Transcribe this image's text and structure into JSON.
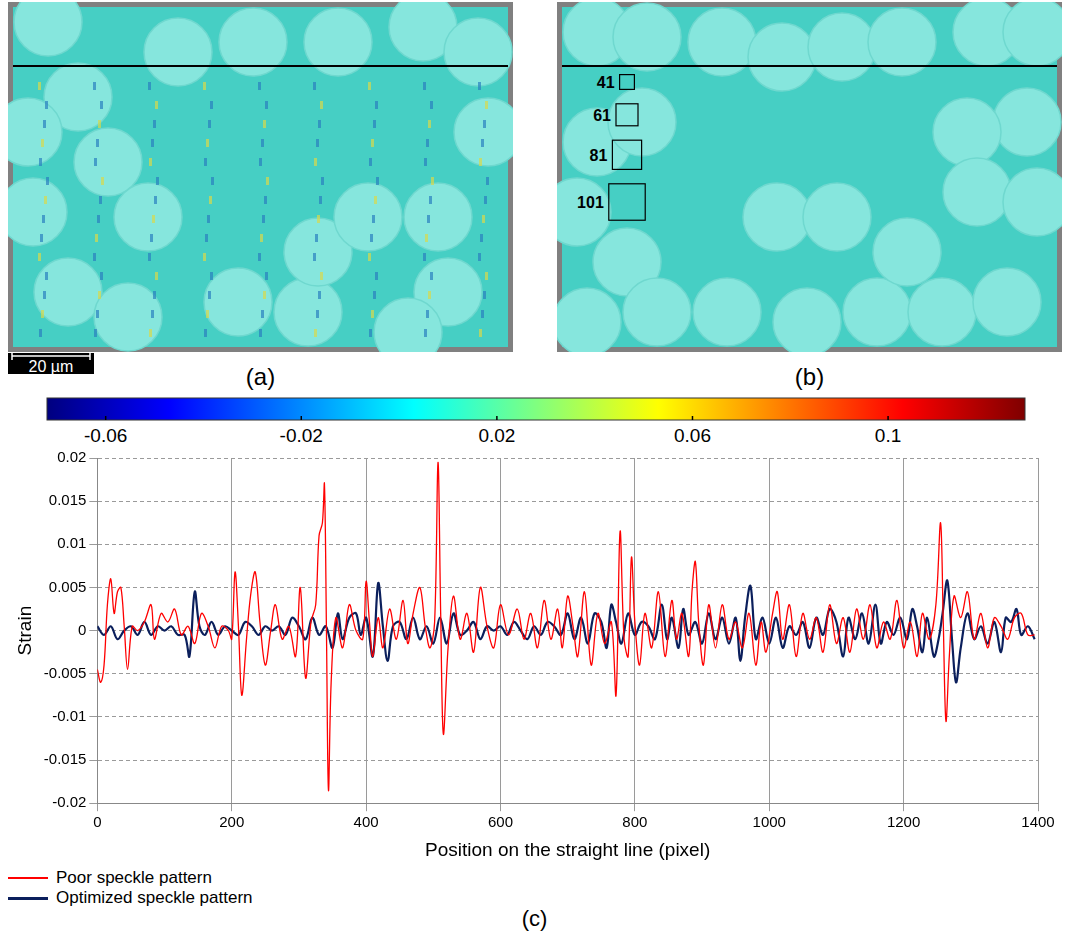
{
  "figure": {
    "panels": [
      {
        "label": "(a)"
      },
      {
        "label": "(b)",
        "subset_sizes": [
          41,
          61,
          81,
          101
        ]
      }
    ],
    "scale_bar": "20 µm",
    "colorbar": {
      "range": [
        -0.072,
        0.128
      ],
      "ticks": [
        -0.06,
        -0.02,
        0.02,
        0.06,
        0.1
      ]
    }
  },
  "chart_data": {
    "type": "line",
    "label": "(c)",
    "x_label": "Position on the straight line (pixel)",
    "y_label": "Strain",
    "xlim": [
      0,
      1400
    ],
    "xticks": [
      0,
      200,
      400,
      600,
      800,
      1000,
      1200,
      1400
    ],
    "ylim": [
      -0.02,
      0.02
    ],
    "yticks": [
      -0.02,
      -0.015,
      -0.01,
      -0.005,
      0,
      0.005,
      0.01,
      0.015,
      0.02
    ],
    "grid": true,
    "legend": "bottom-left",
    "series": [
      {
        "name": "Poor speckle pattern",
        "color": "#ff0000",
        "x": [
          0,
          5,
          10,
          15,
          20,
          25,
          30,
          35,
          40,
          45,
          52,
          60,
          70,
          80,
          85,
          95,
          105,
          115,
          125,
          135,
          145,
          155,
          165,
          175,
          185,
          195,
          200,
          205,
          210,
          215,
          222,
          228,
          235,
          242,
          250,
          258,
          265,
          275,
          285,
          295,
          302,
          310,
          318,
          325,
          330,
          335,
          338,
          341,
          344,
          348,
          355,
          365,
          375,
          385,
          395,
          400,
          405,
          410,
          418,
          425,
          435,
          445,
          455,
          462,
          470,
          480,
          488,
          495,
          502,
          507,
          511,
          515,
          522,
          530,
          540,
          550,
          560,
          570,
          580,
          590,
          600,
          612,
          625,
          635,
          645,
          655,
          665,
          675,
          685,
          692,
          700,
          708,
          715,
          725,
          735,
          745,
          755,
          765,
          772,
          778,
          784,
          790,
          795,
          800,
          807,
          815,
          825,
          835,
          845,
          855,
          862,
          870,
          880,
          885,
          890,
          895,
          902,
          910,
          920,
          930,
          940,
          950,
          960,
          970,
          980,
          988,
          995,
          1005,
          1012,
          1020,
          1030,
          1040,
          1050,
          1060,
          1070,
          1080,
          1090,
          1100,
          1110,
          1120,
          1130,
          1140,
          1150,
          1160,
          1170,
          1180,
          1190,
          1200,
          1210,
          1220,
          1228,
          1238,
          1248,
          1255,
          1259,
          1263,
          1268,
          1275,
          1285,
          1295,
          1305,
          1315,
          1325,
          1335,
          1345,
          1355,
          1365,
          1375,
          1385,
          1395
        ],
        "values": [
          -0.0045,
          -0.006,
          -0.004,
          0.003,
          0.006,
          0.002,
          0.0045,
          0.005,
          0.0005,
          -0.0045,
          0.0005,
          0,
          0.001,
          0.003,
          -0.001,
          0.002,
          0.001,
          0.0025,
          -0.0005,
          0.0005,
          -0.0015,
          0.002,
          0.0005,
          -0.002,
          0.0005,
          0,
          -0.001,
          0.0068,
          0.0005,
          -0.0075,
          -0.001,
          0.004,
          0.0068,
          0.001,
          -0.004,
          0,
          0.003,
          -0.001,
          0.0005,
          -0.003,
          0.005,
          -0.0055,
          0.001,
          0.003,
          0.011,
          0.0125,
          0.017,
          0,
          -0.0185,
          -0.006,
          0.0015,
          -0.002,
          0.003,
          0,
          -0.001,
          0.0057,
          0.001,
          -0.003,
          0.0015,
          -0.002,
          0.0025,
          -0.001,
          0.0035,
          -0.0015,
          0.002,
          0.005,
          0.0005,
          -0.002,
          0.001,
          0.0195,
          0.002,
          -0.012,
          -0.002,
          0.004,
          -0.001,
          0.002,
          -0.0025,
          0.005,
          0.0005,
          -0.002,
          0.003,
          -0.0005,
          0.0025,
          -0.001,
          0.002,
          -0.002,
          0.0035,
          -0.001,
          0.0025,
          -0.002,
          0.004,
          0.0005,
          -0.003,
          0.0045,
          -0.004,
          0.002,
          -0.0015,
          0.001,
          -0.0075,
          0.0115,
          -0.001,
          -0.003,
          0.0085,
          0.001,
          -0.004,
          0.002,
          -0.002,
          0.0045,
          -0.003,
          0.0035,
          -0.001,
          0.002,
          -0.003,
          0.0045,
          0.008,
          0.001,
          -0.004,
          0.003,
          -0.002,
          0.003,
          -0.001,
          0.001,
          -0.002,
          0.002,
          -0.004,
          0.001,
          -0.0025,
          0.002,
          0.0045,
          -0.001,
          0.003,
          -0.003,
          0.002,
          -0.001,
          0.0015,
          -0.0025,
          0.003,
          -0.0015,
          0.0015,
          -0.0025,
          0.0025,
          -0.001,
          0.003,
          -0.002,
          0.001,
          -0.001,
          0.0035,
          -0.002,
          0.001,
          -0.003,
          0.002,
          -0.001,
          0.003,
          0.0125,
          0.001,
          -0.0105,
          -0.003,
          0.004,
          0.0015,
          0.0045,
          -0.001,
          0.002,
          -0.002,
          0.0015,
          0.0005,
          -0.001,
          0.0015,
          0.002,
          -0.0005,
          -0.0005
        ]
      },
      {
        "name": "Optimized speckle pattern",
        "color": "#0b1f5c",
        "x": [
          0,
          10,
          20,
          30,
          40,
          50,
          60,
          70,
          80,
          90,
          100,
          110,
          120,
          130,
          137,
          145,
          152,
          160,
          170,
          180,
          190,
          200,
          210,
          220,
          230,
          240,
          250,
          260,
          270,
          280,
          290,
          300,
          310,
          320,
          330,
          340,
          350,
          358,
          365,
          375,
          385,
          392,
          400,
          410,
          418,
          425,
          432,
          440,
          450,
          460,
          470,
          480,
          490,
          500,
          510,
          520,
          530,
          540,
          550,
          560,
          570,
          580,
          590,
          600,
          610,
          620,
          630,
          640,
          650,
          660,
          670,
          680,
          690,
          700,
          710,
          720,
          730,
          740,
          750,
          758,
          765,
          772,
          780,
          790,
          800,
          810,
          820,
          830,
          840,
          848,
          855,
          865,
          872,
          880,
          890,
          900,
          910,
          920,
          930,
          940,
          950,
          957,
          964,
          972,
          980,
          990,
          1000,
          1010,
          1020,
          1030,
          1040,
          1050,
          1060,
          1070,
          1080,
          1090,
          1100,
          1110,
          1118,
          1128,
          1138,
          1148,
          1158,
          1166,
          1175,
          1185,
          1195,
          1205,
          1213,
          1220,
          1228,
          1235,
          1245,
          1252,
          1258,
          1265,
          1272,
          1278,
          1285,
          1295,
          1305,
          1315,
          1325,
          1335,
          1345,
          1352,
          1360,
          1368,
          1375,
          1385,
          1395
        ],
        "values": [
          0.0005,
          -0.0005,
          0.0005,
          -0.001,
          0,
          0.0005,
          -0.0005,
          0.001,
          -0.0005,
          0.0005,
          0,
          0.0005,
          -0.0005,
          -0.0005,
          -0.003,
          0.0045,
          0.0005,
          -0.0005,
          0.001,
          -0.0005,
          0.0005,
          0,
          -0.0005,
          0.001,
          0.0005,
          -0.0005,
          0.0005,
          0,
          0.0005,
          -0.0005,
          0.0015,
          0.0005,
          -0.001,
          0.0015,
          -0.0005,
          0.0005,
          -0.002,
          0.002,
          -0.001,
          0.0015,
          0.002,
          -0.0005,
          0.0015,
          -0.003,
          0.0055,
          0.0005,
          -0.0035,
          0.0005,
          0.001,
          -0.001,
          0.0015,
          -0.001,
          0.0005,
          -0.0015,
          0.0015,
          -0.0015,
          0.002,
          -0.0005,
          0,
          0.001,
          -0.001,
          0.0005,
          0,
          0.0005,
          -0.0005,
          0.001,
          0,
          -0.001,
          0.0005,
          -0.0005,
          0.001,
          0.0005,
          -0.0005,
          0.002,
          -0.001,
          0.0015,
          -0.0015,
          0.002,
          0.001,
          -0.002,
          0.003,
          0.001,
          -0.0015,
          0.002,
          -0.0005,
          0.001,
          0.0005,
          -0.001,
          0.003,
          -0.001,
          0.0015,
          -0.002,
          0.0025,
          -0.0005,
          0.001,
          -0.0015,
          0.002,
          -0.001,
          0.0015,
          -0.0015,
          0.0015,
          -0.0035,
          0.0015,
          0.0052,
          -0.001,
          0.0015,
          -0.0015,
          0.0015,
          -0.002,
          0.0005,
          -0.0005,
          0.001,
          -0.002,
          0.0015,
          -0.0005,
          0.0025,
          0.001,
          -0.003,
          0.0015,
          -0.001,
          0.002,
          -0.0015,
          0.003,
          -0.0015,
          0.001,
          -0.0005,
          0.0015,
          -0.001,
          0.0025,
          0.0005,
          -0.0025,
          0.0015,
          -0.003,
          -0.001,
          0.002,
          0.0058,
          -0.001,
          -0.006,
          -0.002,
          0.002,
          -0.001,
          0.0005,
          -0.0015,
          0.001,
          -0.0025,
          0.0015,
          0.001,
          0.0025,
          -0.0005,
          0.0005,
          -0.001
        ]
      }
    ]
  }
}
